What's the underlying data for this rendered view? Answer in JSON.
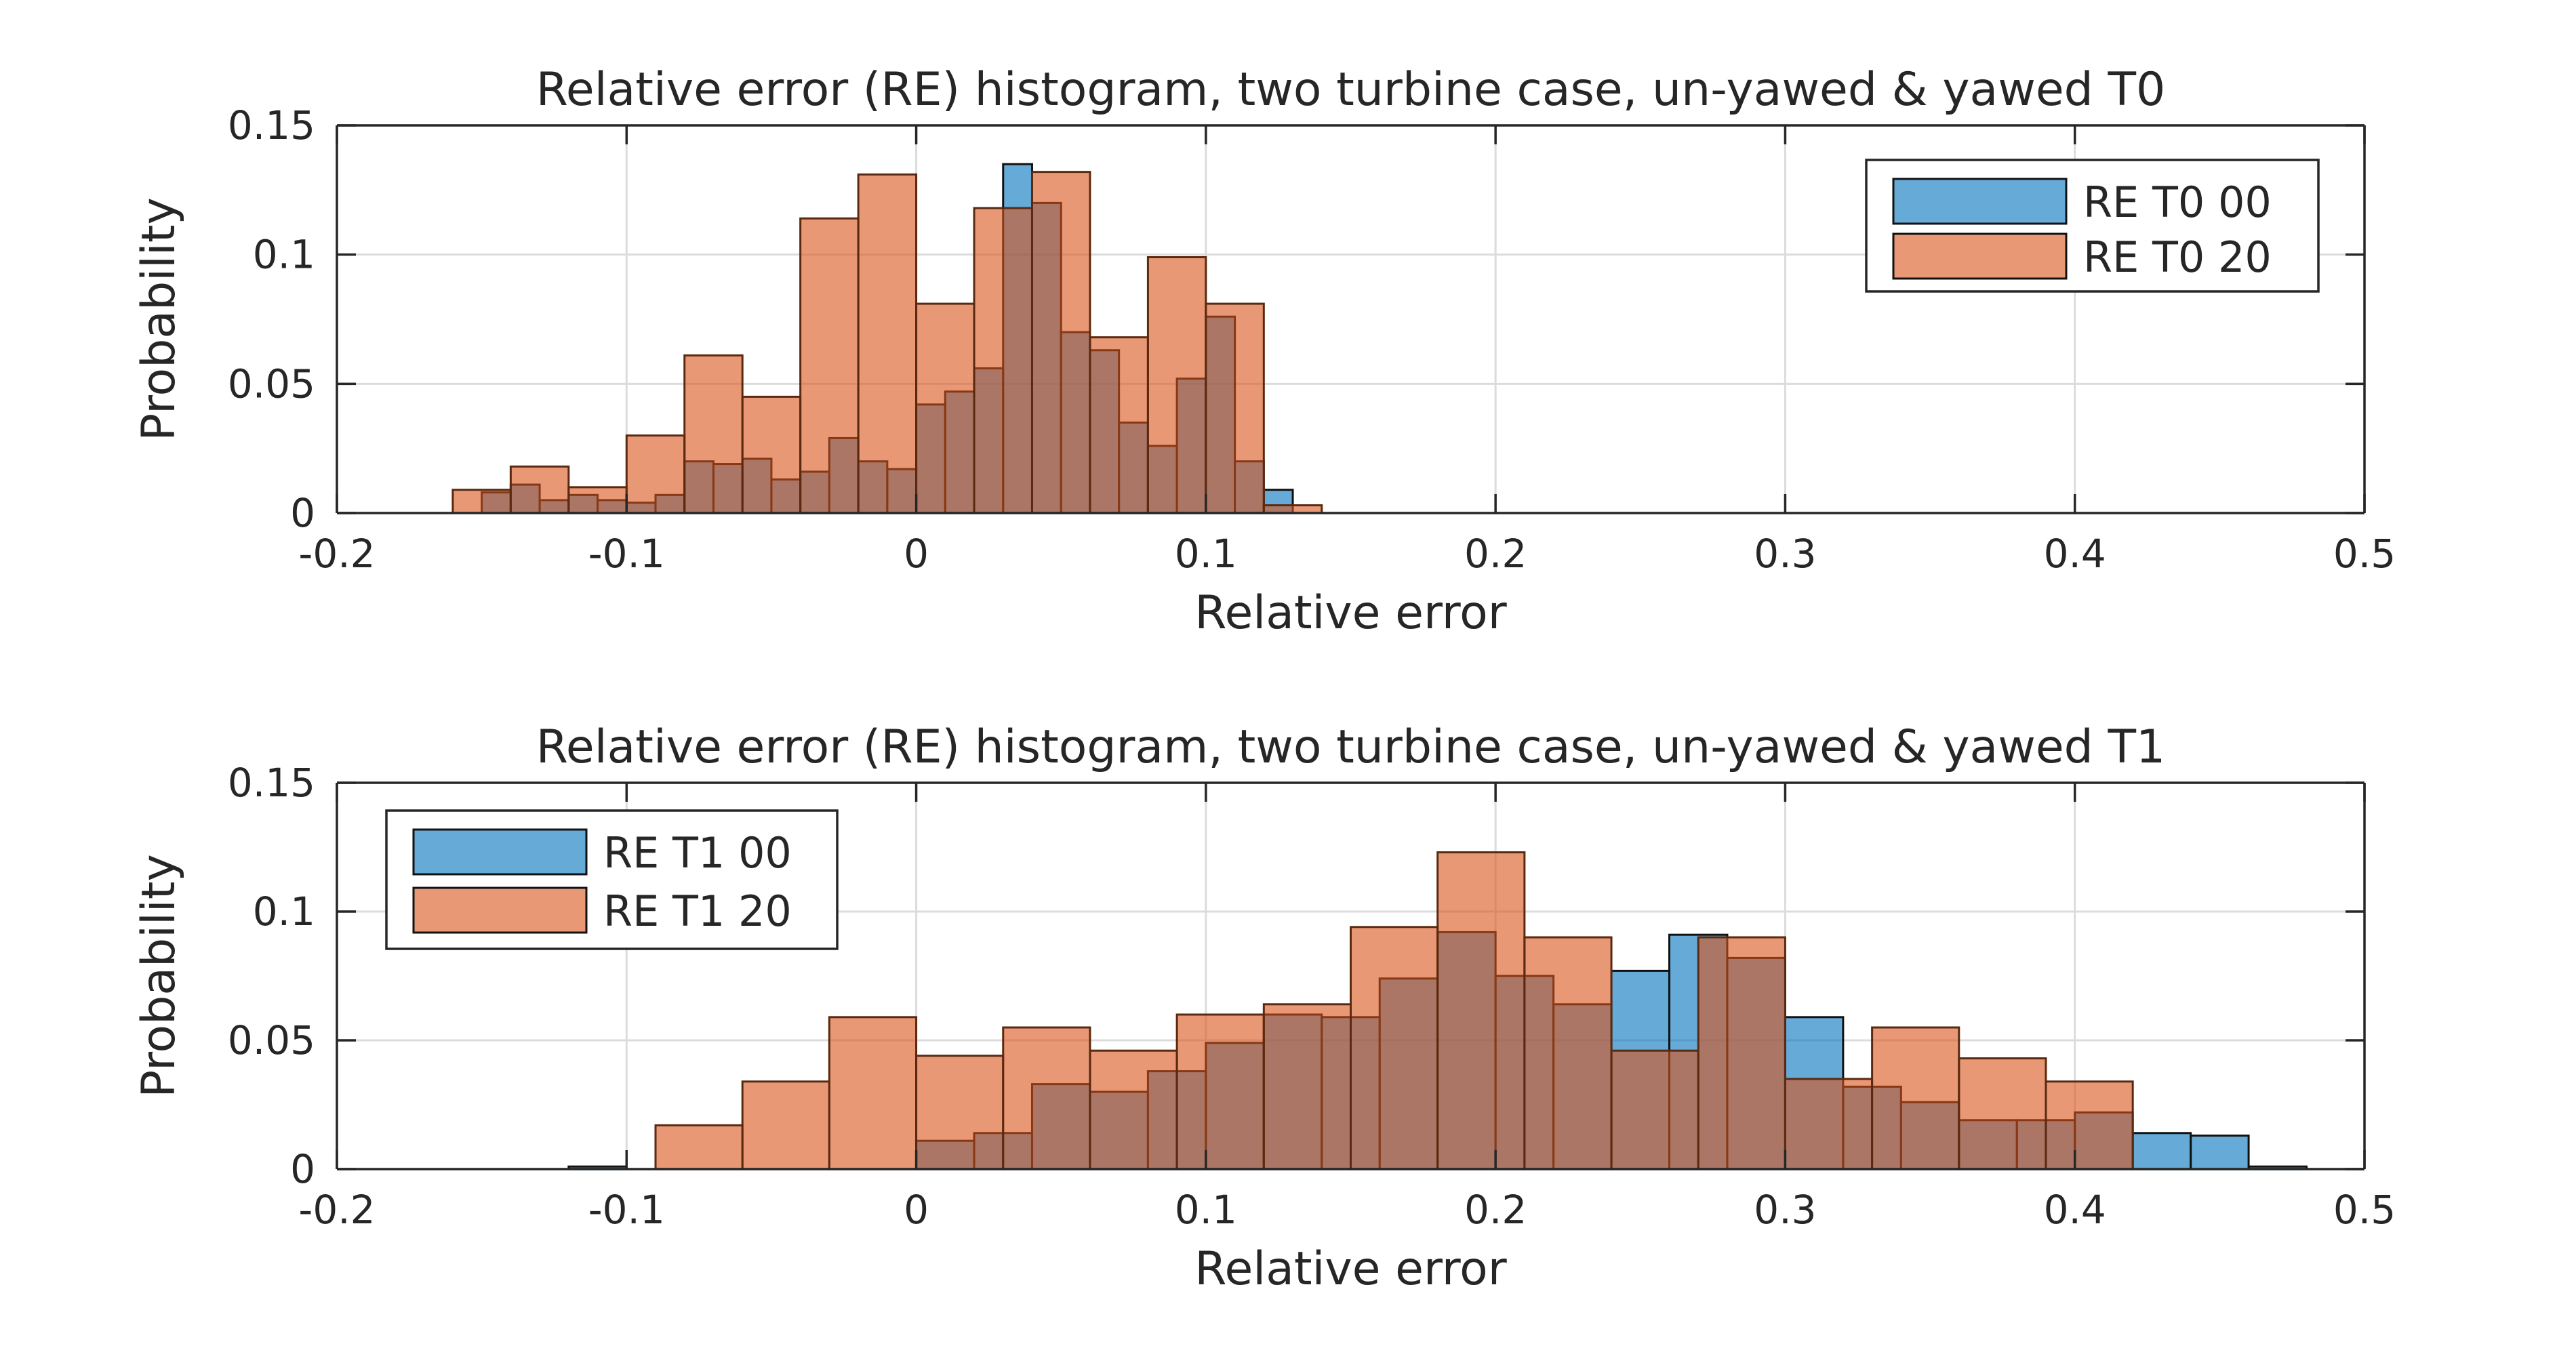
{
  "chart_data": [
    {
      "type": "bar",
      "title": "Relative error (RE) histogram, two turbine case, un-yawed & yawed T0",
      "xlabel": "Relative error",
      "ylabel": "Probability",
      "xlim": [
        -0.2,
        0.5
      ],
      "ylim": [
        0,
        0.15
      ],
      "xticks": [
        "-0.2",
        "-0.1",
        "0",
        "0.1",
        "0.2",
        "0.3",
        "0.4",
        "0.5"
      ],
      "yticks": [
        "0",
        "0.05",
        "0.1",
        "0.15"
      ],
      "grid": true,
      "legend_position": "top-right",
      "series": [
        {
          "name": "RE T0 00",
          "color": "#0072BD",
          "bin_width": 0.01,
          "bins": [
            {
              "x0": -0.15,
              "p": 0.008
            },
            {
              "x0": -0.14,
              "p": 0.011
            },
            {
              "x0": -0.13,
              "p": 0.005
            },
            {
              "x0": -0.12,
              "p": 0.007
            },
            {
              "x0": -0.11,
              "p": 0.005
            },
            {
              "x0": -0.1,
              "p": 0.004
            },
            {
              "x0": -0.09,
              "p": 0.007
            },
            {
              "x0": -0.08,
              "p": 0.02
            },
            {
              "x0": -0.07,
              "p": 0.019
            },
            {
              "x0": -0.06,
              "p": 0.021
            },
            {
              "x0": -0.05,
              "p": 0.013
            },
            {
              "x0": -0.04,
              "p": 0.016
            },
            {
              "x0": -0.03,
              "p": 0.029
            },
            {
              "x0": -0.02,
              "p": 0.02
            },
            {
              "x0": -0.01,
              "p": 0.017
            },
            {
              "x0": 0.0,
              "p": 0.042
            },
            {
              "x0": 0.01,
              "p": 0.047
            },
            {
              "x0": 0.02,
              "p": 0.056
            },
            {
              "x0": 0.03,
              "p": 0.135
            },
            {
              "x0": 0.04,
              "p": 0.12
            },
            {
              "x0": 0.05,
              "p": 0.07
            },
            {
              "x0": 0.06,
              "p": 0.063
            },
            {
              "x0": 0.07,
              "p": 0.035
            },
            {
              "x0": 0.08,
              "p": 0.026
            },
            {
              "x0": 0.09,
              "p": 0.052
            },
            {
              "x0": 0.1,
              "p": 0.076
            },
            {
              "x0": 0.11,
              "p": 0.02
            },
            {
              "x0": 0.12,
              "p": 0.009
            }
          ]
        },
        {
          "name": "RE T0 20",
          "color": "#D95319",
          "bin_width": 0.02,
          "bins": [
            {
              "x0": -0.16,
              "p": 0.009
            },
            {
              "x0": -0.14,
              "p": 0.018
            },
            {
              "x0": -0.12,
              "p": 0.01
            },
            {
              "x0": -0.1,
              "p": 0.03
            },
            {
              "x0": -0.08,
              "p": 0.061
            },
            {
              "x0": -0.06,
              "p": 0.045
            },
            {
              "x0": -0.04,
              "p": 0.114
            },
            {
              "x0": -0.02,
              "p": 0.131
            },
            {
              "x0": 0.0,
              "p": 0.081
            },
            {
              "x0": 0.02,
              "p": 0.118
            },
            {
              "x0": 0.04,
              "p": 0.132
            },
            {
              "x0": 0.06,
              "p": 0.068
            },
            {
              "x0": 0.08,
              "p": 0.099
            },
            {
              "x0": 0.1,
              "p": 0.081
            },
            {
              "x0": 0.12,
              "p": 0.003
            }
          ]
        }
      ]
    },
    {
      "type": "bar",
      "title": "Relative error (RE) histogram, two turbine case, un-yawed & yawed T1",
      "xlabel": "Relative error",
      "ylabel": "Probability",
      "xlim": [
        -0.2,
        0.5
      ],
      "ylim": [
        0,
        0.15
      ],
      "xticks": [
        "-0.2",
        "-0.1",
        "0",
        "0.1",
        "0.2",
        "0.3",
        "0.4",
        "0.5"
      ],
      "yticks": [
        "0",
        "0.05",
        "0.1",
        "0.15"
      ],
      "grid": true,
      "legend_position": "top-left",
      "series": [
        {
          "name": "RE T1 00",
          "color": "#0072BD",
          "bin_width": 0.02,
          "bins": [
            {
              "x0": -0.12,
              "p": 0.001
            },
            {
              "x0": 0.0,
              "p": 0.011
            },
            {
              "x0": 0.02,
              "p": 0.014
            },
            {
              "x0": 0.04,
              "p": 0.033
            },
            {
              "x0": 0.06,
              "p": 0.03
            },
            {
              "x0": 0.08,
              "p": 0.038
            },
            {
              "x0": 0.1,
              "p": 0.049
            },
            {
              "x0": 0.12,
              "p": 0.06
            },
            {
              "x0": 0.14,
              "p": 0.059
            },
            {
              "x0": 0.16,
              "p": 0.074
            },
            {
              "x0": 0.18,
              "p": 0.092
            },
            {
              "x0": 0.2,
              "p": 0.075
            },
            {
              "x0": 0.22,
              "p": 0.064
            },
            {
              "x0": 0.24,
              "p": 0.077
            },
            {
              "x0": 0.26,
              "p": 0.091
            },
            {
              "x0": 0.28,
              "p": 0.082
            },
            {
              "x0": 0.3,
              "p": 0.059
            },
            {
              "x0": 0.32,
              "p": 0.032
            },
            {
              "x0": 0.34,
              "p": 0.026
            },
            {
              "x0": 0.36,
              "p": 0.019
            },
            {
              "x0": 0.38,
              "p": 0.019
            },
            {
              "x0": 0.4,
              "p": 0.022
            },
            {
              "x0": 0.42,
              "p": 0.014
            },
            {
              "x0": 0.44,
              "p": 0.013
            },
            {
              "x0": 0.46,
              "p": 0.001
            }
          ]
        },
        {
          "name": "RE T1 20",
          "color": "#D95319",
          "bin_width": 0.03,
          "bins": [
            {
              "x0": -0.09,
              "p": 0.017
            },
            {
              "x0": -0.06,
              "p": 0.034
            },
            {
              "x0": -0.03,
              "p": 0.059
            },
            {
              "x0": 0.0,
              "p": 0.044
            },
            {
              "x0": 0.03,
              "p": 0.055
            },
            {
              "x0": 0.06,
              "p": 0.046
            },
            {
              "x0": 0.09,
              "p": 0.06
            },
            {
              "x0": 0.12,
              "p": 0.064
            },
            {
              "x0": 0.15,
              "p": 0.094
            },
            {
              "x0": 0.18,
              "p": 0.123
            },
            {
              "x0": 0.21,
              "p": 0.09
            },
            {
              "x0": 0.24,
              "p": 0.046
            },
            {
              "x0": 0.27,
              "p": 0.09
            },
            {
              "x0": 0.3,
              "p": 0.035
            },
            {
              "x0": 0.33,
              "p": 0.055
            },
            {
              "x0": 0.36,
              "p": 0.043
            },
            {
              "x0": 0.39,
              "p": 0.034
            }
          ]
        }
      ]
    }
  ]
}
